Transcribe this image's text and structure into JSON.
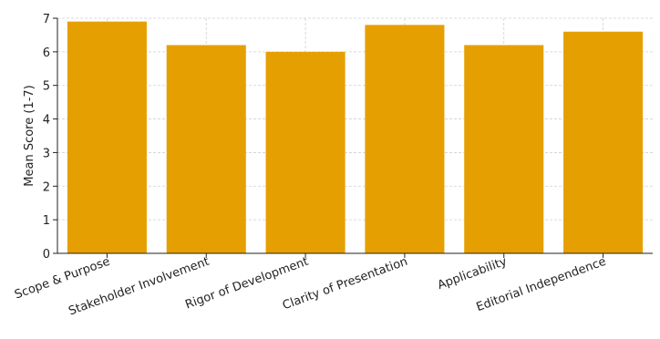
{
  "chart_data": {
    "type": "bar",
    "title": "",
    "xlabel": "",
    "ylabel": "Mean Score (1-7)",
    "categories": [
      "Scope & Purpose",
      "Stakeholder Involvement",
      "Rigor of Development",
      "Clarity of Presentation",
      "Applicability",
      "Editorial Independence"
    ],
    "values": [
      6.9,
      6.2,
      6.0,
      6.8,
      6.2,
      6.6
    ],
    "ylim": [
      0,
      7
    ],
    "yticks": [
      "0",
      "1",
      "2",
      "3",
      "4",
      "5",
      "6",
      "7"
    ],
    "grid": true,
    "bar_color": "#E69F00"
  }
}
